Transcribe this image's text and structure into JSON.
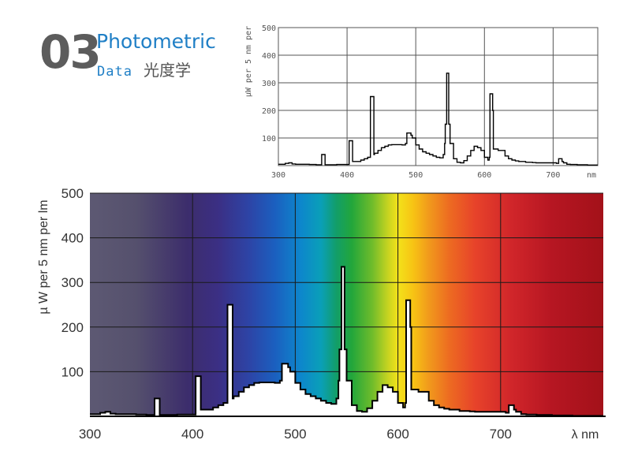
{
  "heading": {
    "number": "03",
    "title_en": "Photometric",
    "title_data": "Data",
    "title_cn": "光度学"
  },
  "chart_data": [
    {
      "type": "line",
      "name": "small-spectrum",
      "title": "",
      "xlabel": "nm",
      "ylabel": "µW per 5 nm per",
      "xlim": [
        300,
        765
      ],
      "ylim": [
        0,
        500
      ],
      "xticks": [
        300,
        400,
        500,
        600,
        700
      ],
      "yticks": [
        100,
        200,
        300,
        400,
        500
      ],
      "grid": true,
      "colors": {
        "line": "#000000",
        "grid": "#555555",
        "text": "#555555"
      }
    },
    {
      "type": "area",
      "name": "main-spectrum",
      "title": "",
      "xlabel": "λ nm",
      "ylabel": "µ W per 5 nm per lm",
      "xlim": [
        300,
        800
      ],
      "ylim": [
        0,
        500
      ],
      "xticks": [
        300,
        400,
        500,
        600,
        700
      ],
      "yticks": [
        100,
        200,
        300,
        400,
        500
      ],
      "grid": true,
      "background": "visible spectrum gradient",
      "colors": {
        "line": "#000000",
        "fill": "#ffffff",
        "grid": "#1a1a1a",
        "text": "#333333"
      },
      "x": [
        300,
        305,
        310,
        315,
        320,
        325,
        330,
        335,
        340,
        345,
        350,
        355,
        360,
        362,
        363,
        365,
        367,
        368,
        370,
        375,
        380,
        385,
        390,
        395,
        400,
        402,
        403,
        405,
        407,
        408,
        410,
        415,
        420,
        425,
        430,
        433,
        434,
        436,
        438,
        439,
        440,
        445,
        450,
        455,
        460,
        465,
        470,
        475,
        480,
        485,
        487,
        488,
        490,
        493,
        495,
        500,
        505,
        510,
        515,
        520,
        525,
        530,
        535,
        540,
        542,
        543,
        545,
        547,
        548,
        550,
        555,
        560,
        565,
        570,
        575,
        580,
        585,
        590,
        595,
        600,
        605,
        607,
        608,
        610,
        612,
        613,
        615,
        620,
        625,
        630,
        635,
        640,
        645,
        650,
        655,
        660,
        665,
        670,
        675,
        680,
        685,
        690,
        695,
        700,
        705,
        707,
        708,
        710,
        712,
        713,
        715,
        720,
        725,
        730,
        735,
        740,
        745,
        750,
        755,
        760,
        765,
        770,
        775,
        780,
        785,
        790,
        795,
        800
      ],
      "y": [
        5,
        5,
        8,
        10,
        6,
        5,
        5,
        5,
        5,
        4,
        4,
        3,
        3,
        3,
        40,
        40,
        40,
        3,
        3,
        3,
        3,
        4,
        4,
        4,
        4,
        4,
        90,
        90,
        90,
        15,
        15,
        15,
        20,
        25,
        30,
        30,
        250,
        250,
        250,
        40,
        45,
        55,
        65,
        70,
        75,
        76,
        76,
        76,
        75,
        80,
        118,
        118,
        118,
        110,
        100,
        75,
        60,
        50,
        45,
        40,
        35,
        30,
        28,
        40,
        80,
        150,
        335,
        335,
        150,
        80,
        25,
        12,
        10,
        18,
        35,
        55,
        70,
        65,
        55,
        30,
        20,
        30,
        260,
        260,
        200,
        60,
        60,
        55,
        55,
        35,
        25,
        20,
        17,
        15,
        15,
        12,
        12,
        11,
        10,
        10,
        10,
        10,
        10,
        10,
        8,
        8,
        25,
        25,
        25,
        15,
        10,
        5,
        4,
        4,
        3,
        3,
        3,
        2,
        2,
        2,
        2,
        1,
        1,
        1,
        1,
        1,
        1,
        1
      ]
    }
  ]
}
